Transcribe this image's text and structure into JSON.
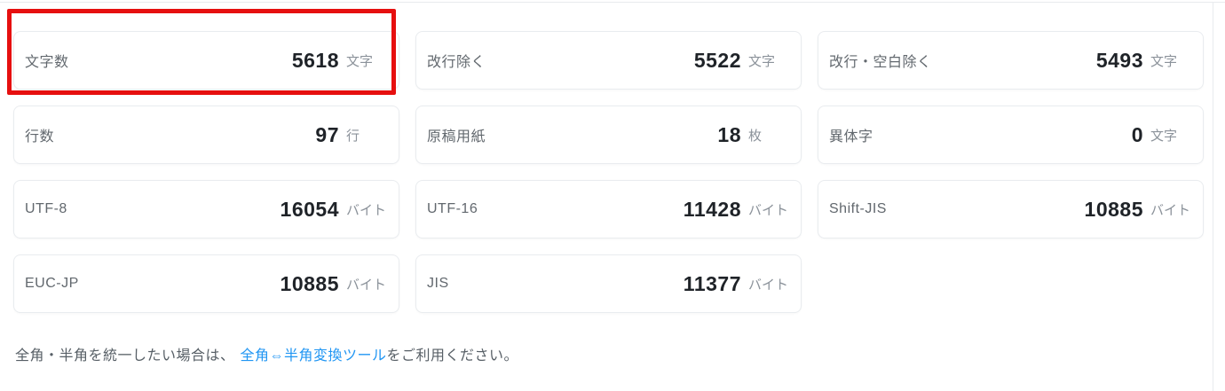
{
  "colors": {
    "highlight_red": "#e60f0f",
    "link_blue": "#2196f3",
    "card_border": "#e9ecef",
    "value_text": "#1f2328",
    "label_text": "#62686e",
    "unit_text": "#8b929a"
  },
  "stats": [
    {
      "label": "文字数",
      "value": "5618",
      "unit": "文字",
      "highlighted": true
    },
    {
      "label": "改行除く",
      "value": "5522",
      "unit": "文字"
    },
    {
      "label": "改行・空白除く",
      "value": "5493",
      "unit": "文字"
    },
    {
      "label": "行数",
      "value": "97",
      "unit": "行"
    },
    {
      "label": "原稿用紙",
      "value": "18",
      "unit": "枚"
    },
    {
      "label": "異体字",
      "value": "0",
      "unit": "文字"
    },
    {
      "label": "UTF-8",
      "value": "16054",
      "unit": "バイト"
    },
    {
      "label": "UTF-16",
      "value": "11428",
      "unit": "バイト"
    },
    {
      "label": "Shift-JIS",
      "value": "10885",
      "unit": "バイト"
    },
    {
      "label": "EUC-JP",
      "value": "10885",
      "unit": "バイト"
    },
    {
      "label": "JIS",
      "value": "11377",
      "unit": "バイト"
    }
  ],
  "footer": {
    "text_before_link": "全角・半角を統一したい場合は、",
    "link_text": "全角⇔半角変換ツール",
    "text_after_link": "をご利用ください。"
  }
}
